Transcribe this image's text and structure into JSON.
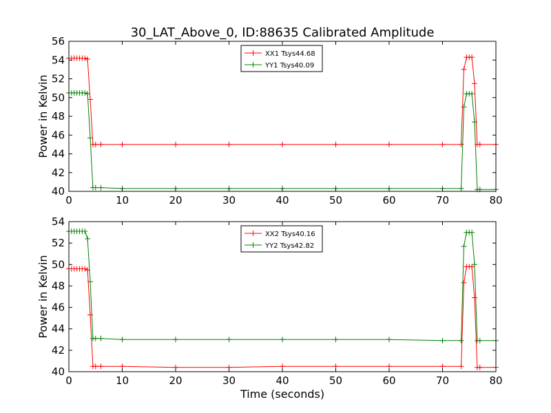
{
  "figure": {
    "title": "30_LAT_Above_0, ID:88635 Calibrated Amplitude",
    "xlabel": "Time (seconds)"
  },
  "colors": {
    "XX": "#ff0000",
    "YY": "#008000",
    "axes": "#000000",
    "background": "#ffffff"
  },
  "chart_data": [
    {
      "type": "line",
      "title": "30_LAT_Above_0, ID:88635 Calibrated Amplitude",
      "xlabel": "",
      "ylabel": "Power in Kelvin",
      "xlim": [
        0,
        80
      ],
      "ylim": [
        40,
        56
      ],
      "xticks": [
        0,
        10,
        20,
        30,
        40,
        50,
        60,
        70,
        80
      ],
      "yticks": [
        40,
        42,
        44,
        46,
        48,
        50,
        52,
        54,
        56
      ],
      "grid": false,
      "legend_position": "top-center",
      "marker": "+",
      "series": [
        {
          "name": "XX1 Tsys44.68",
          "color": "#ff0000",
          "x": [
            0,
            0.5,
            1,
            1.5,
            2,
            2.5,
            3,
            3.5,
            4,
            4.5,
            5,
            6,
            10,
            20,
            30,
            40,
            50,
            60,
            70,
            73.5,
            74,
            74.5,
            75,
            75.5,
            76,
            76.5,
            77,
            80
          ],
          "y": [
            54.2,
            54.2,
            54.2,
            54.2,
            54.2,
            54.2,
            54.2,
            54.1,
            49.8,
            45.0,
            45.0,
            45.0,
            45.0,
            45.0,
            45.0,
            45.0,
            45.0,
            45.0,
            45.0,
            45.0,
            53.0,
            54.3,
            54.3,
            54.3,
            51.5,
            45.0,
            45.0,
            45.0
          ]
        },
        {
          "name": "YY1 Tsys40.09",
          "color": "#008000",
          "x": [
            0,
            0.5,
            1,
            1.5,
            2,
            2.5,
            3,
            3.5,
            4,
            4.5,
            5,
            6,
            10,
            20,
            30,
            40,
            50,
            60,
            70,
            73.5,
            74,
            74.5,
            75,
            75.5,
            76,
            76.5,
            77,
            80
          ],
          "y": [
            50.5,
            50.5,
            50.5,
            50.5,
            50.5,
            50.5,
            50.5,
            50.4,
            45.7,
            40.4,
            40.4,
            40.4,
            40.3,
            40.3,
            40.3,
            40.3,
            40.3,
            40.3,
            40.3,
            40.3,
            49.0,
            50.4,
            50.4,
            50.4,
            47.4,
            40.2,
            40.2,
            40.2
          ]
        }
      ]
    },
    {
      "type": "line",
      "title": "",
      "xlabel": "Time (seconds)",
      "ylabel": "Power in Kelvin",
      "xlim": [
        0,
        80
      ],
      "ylim": [
        40,
        54
      ],
      "xticks": [
        0,
        10,
        20,
        30,
        40,
        50,
        60,
        70,
        80
      ],
      "yticks": [
        40,
        42,
        44,
        46,
        48,
        50,
        52,
        54
      ],
      "grid": false,
      "legend_position": "top-center",
      "marker": "+",
      "series": [
        {
          "name": "XX2 Tsys40.16",
          "color": "#ff0000",
          "x": [
            0,
            0.5,
            1,
            1.5,
            2,
            2.5,
            3,
            3.5,
            4,
            4.5,
            5,
            6,
            10,
            20,
            30,
            40,
            50,
            60,
            70,
            73.5,
            74,
            74.5,
            75,
            75.5,
            76,
            76.5,
            77,
            80
          ],
          "y": [
            49.6,
            49.6,
            49.6,
            49.6,
            49.6,
            49.6,
            49.6,
            49.5,
            45.3,
            40.5,
            40.5,
            40.5,
            40.5,
            40.4,
            40.4,
            40.5,
            40.5,
            40.5,
            40.5,
            40.5,
            48.3,
            49.8,
            49.8,
            49.8,
            46.9,
            40.4,
            40.4,
            40.4
          ]
        },
        {
          "name": "YY2 Tsys42.82",
          "color": "#008000",
          "x": [
            0,
            0.5,
            1,
            1.5,
            2,
            2.5,
            3,
            3.5,
            4,
            4.5,
            5,
            6,
            10,
            20,
            30,
            40,
            50,
            60,
            70,
            73.5,
            74,
            74.5,
            75,
            75.5,
            76,
            76.5,
            77,
            80
          ],
          "y": [
            53.1,
            53.1,
            53.1,
            53.1,
            53.1,
            53.1,
            53.1,
            52.4,
            48.4,
            43.1,
            43.1,
            43.1,
            43.0,
            43.0,
            43.0,
            43.0,
            43.0,
            43.0,
            42.9,
            42.9,
            51.7,
            53.0,
            53.0,
            53.0,
            50.0,
            42.9,
            42.9,
            42.9
          ]
        }
      ]
    }
  ]
}
